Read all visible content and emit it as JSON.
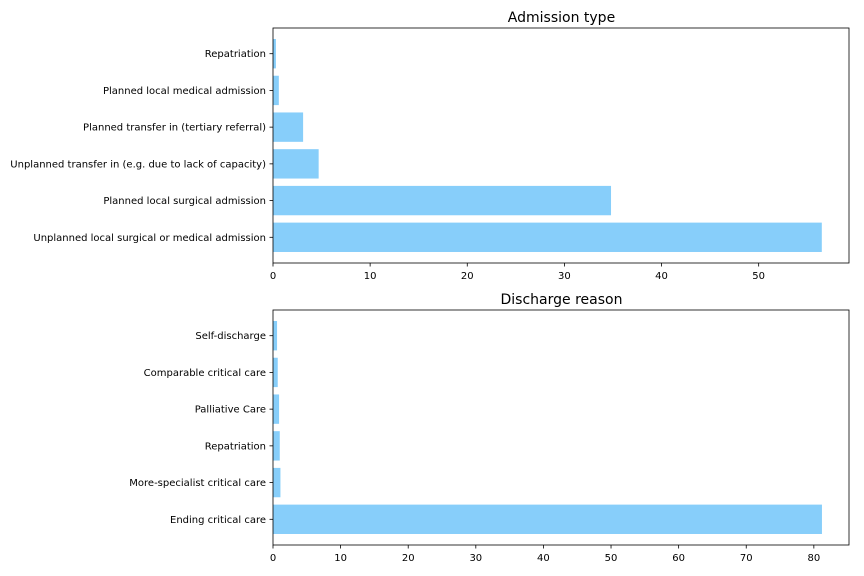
{
  "chart_data": [
    {
      "type": "bar",
      "orientation": "horizontal",
      "title": "Admission type",
      "xlabel": "",
      "ylabel": "",
      "categories": [
        "Repatriation",
        "Planned local medical admission",
        "Planned transfer in (tertiary referral)",
        "Unplanned transfer in (e.g. due to lack of capacity)",
        "Planned local surgical admission",
        "Unplanned local surgical or medical admission "
      ],
      "values": [
        0.3,
        0.6,
        3.1,
        4.7,
        34.8,
        56.5
      ],
      "xlim": [
        0,
        59.3
      ],
      "xticks": [
        0,
        10,
        20,
        30,
        40,
        50
      ],
      "color": "#87cefa",
      "grid": false,
      "legend": "none"
    },
    {
      "type": "bar",
      "orientation": "horizontal",
      "title": "Discharge reason",
      "xlabel": "",
      "ylabel": "",
      "categories": [
        "Self-discharge",
        "Comparable critical care",
        "Palliative Care",
        "Repatriation",
        "More-specialist critical care",
        "Ending critical care"
      ],
      "values": [
        0.6,
        0.7,
        0.9,
        1.0,
        1.1,
        81.2
      ],
      "xlim": [
        0,
        85.2
      ],
      "xticks": [
        0,
        10,
        20,
        30,
        40,
        50,
        60,
        70,
        80
      ],
      "color": "#87cefa",
      "grid": false,
      "legend": "none"
    }
  ]
}
